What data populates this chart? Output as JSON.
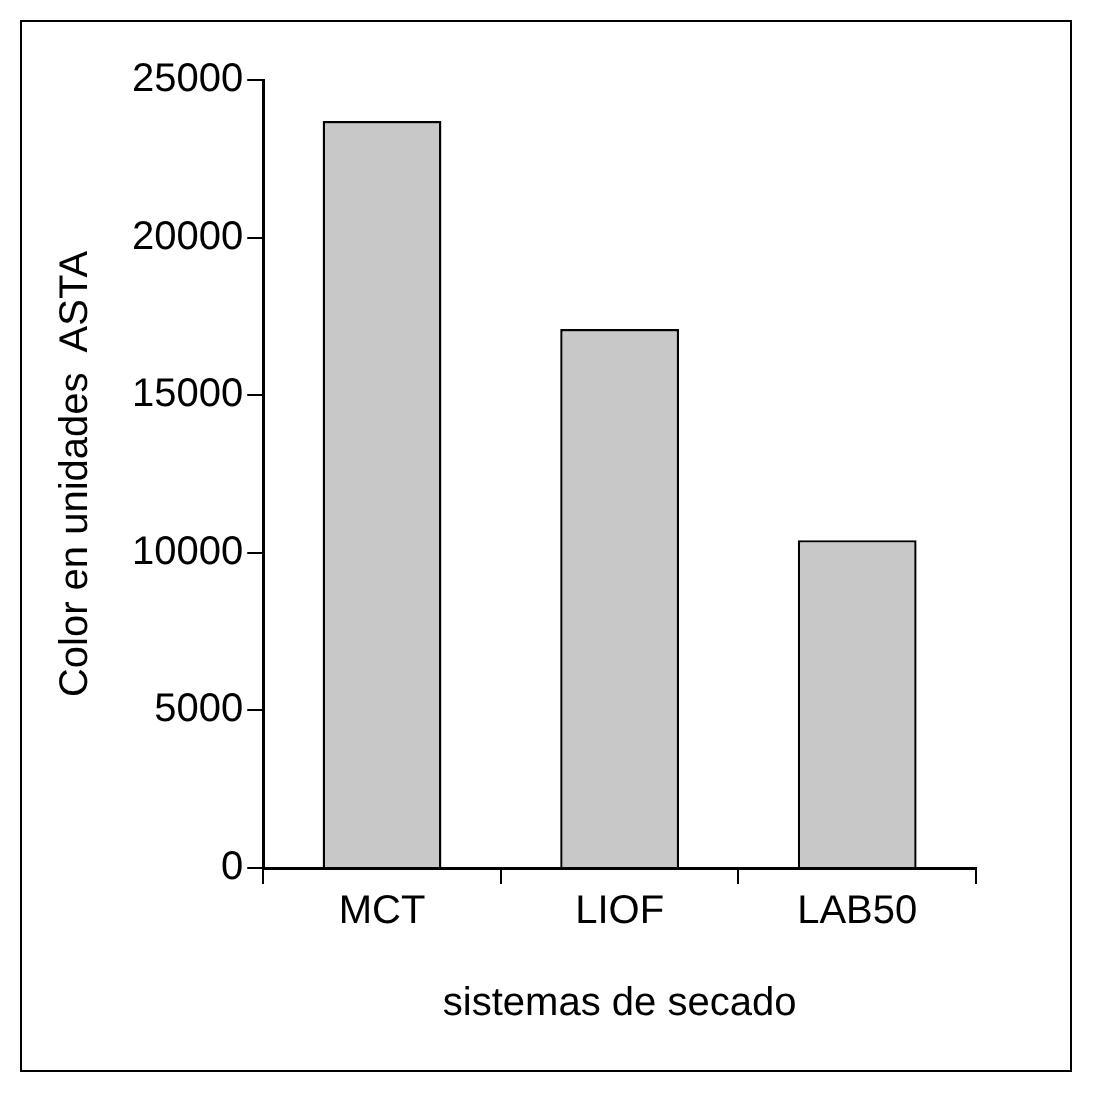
{
  "chart_data": {
    "type": "bar",
    "xlabel": "sistemas de secado",
    "ylabel": "Color en unidades  ASTA",
    "categories": [
      "MCT",
      "LIOF",
      "LAB50"
    ],
    "values": [
      23700,
      17100,
      10400
    ],
    "color": "#c8c8c8",
    "ylim": [
      0,
      25000
    ],
    "yticks": [
      0,
      5000,
      10000,
      15000,
      20000,
      25000
    ],
    "grid": false,
    "legend": false
  }
}
